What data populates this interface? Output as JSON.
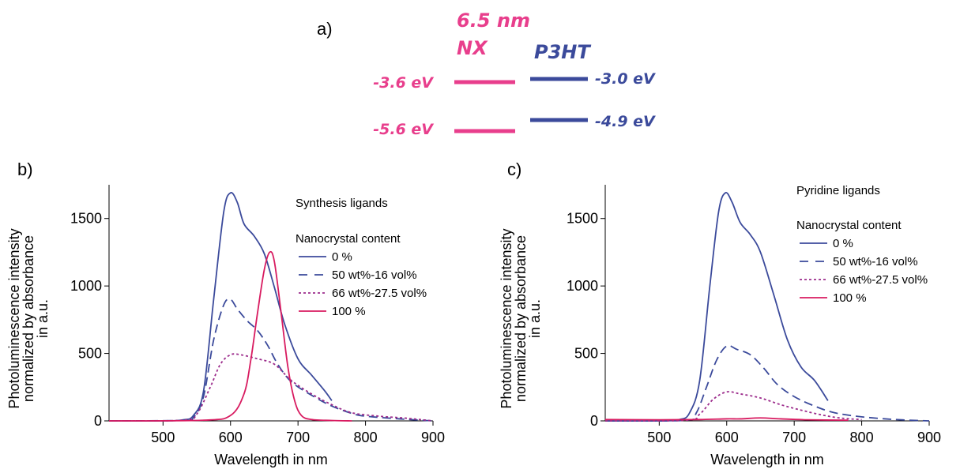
{
  "panel_a": {
    "label": "a)",
    "nx_title": "6.5 nm",
    "nx_name": "NX",
    "p3ht_name": "P3HT",
    "nx_color": "#e83e8c",
    "p3ht_color": "#3b4a9b",
    "levels": {
      "nx_lumo": "-3.6 eV",
      "nx_homo": "-5.6 eV",
      "p3ht_lumo": "-3.0 eV",
      "p3ht_homo": "-4.9 eV"
    }
  },
  "chart_data": [
    {
      "type": "line",
      "panel_label": "b)",
      "title": "Synthesis ligands",
      "legend_title": "Nanocrystal content",
      "xlabel": "Wavelength in nm",
      "ylabel": [
        "Photoluminescence intensity",
        "normalized by absorbance",
        "in a.u."
      ],
      "xlim": [
        420,
        900
      ],
      "ylim": [
        0,
        1750
      ],
      "xticks": [
        500,
        600,
        700,
        800,
        900
      ],
      "yticks": [
        0,
        500,
        1000,
        1500
      ],
      "grid": false,
      "legend_position": "top-right",
      "series": [
        {
          "name": "0 %",
          "color": "#3b4a9b",
          "dash": "solid",
          "x": [
            420,
            500,
            530,
            545,
            560,
            575,
            590,
            600,
            610,
            620,
            635,
            650,
            665,
            680,
            700,
            720,
            740,
            750
          ],
          "y": [
            0,
            0,
            8,
            40,
            220,
            900,
            1550,
            1690,
            1620,
            1460,
            1370,
            1240,
            990,
            720,
            460,
            340,
            220,
            150
          ]
        },
        {
          "name": "50 wt%-16 vol%",
          "color": "#3b4a9b",
          "dash": "dashed",
          "x": [
            420,
            530,
            545,
            560,
            575,
            590,
            600,
            610,
            625,
            640,
            655,
            670,
            690,
            720,
            750,
            780,
            800,
            850,
            900
          ],
          "y": [
            0,
            4,
            25,
            180,
            600,
            860,
            900,
            830,
            740,
            670,
            560,
            420,
            290,
            190,
            110,
            55,
            35,
            15,
            0
          ]
        },
        {
          "name": "66 wt%-27.5 vol%",
          "color": "#9c2c8c",
          "dash": "dotted",
          "x": [
            420,
            530,
            550,
            570,
            585,
            600,
            615,
            640,
            665,
            690,
            720,
            750,
            780,
            820,
            860,
            900
          ],
          "y": [
            0,
            5,
            50,
            250,
            420,
            490,
            490,
            460,
            420,
            300,
            200,
            120,
            60,
            35,
            20,
            0
          ]
        },
        {
          "name": "100 %",
          "color": "#d81b60",
          "dash": "solid",
          "x": [
            420,
            560,
            600,
            620,
            630,
            640,
            650,
            658,
            665,
            675,
            685,
            695,
            705,
            720,
            750,
            780
          ],
          "y": [
            0,
            5,
            40,
            200,
            450,
            800,
            1120,
            1250,
            1180,
            800,
            400,
            150,
            40,
            10,
            3,
            0
          ]
        }
      ]
    },
    {
      "type": "line",
      "panel_label": "c)",
      "title": "Pyridine ligands",
      "legend_title": "Nanocrystal content",
      "xlabel": "Wavelength in nm",
      "ylabel": [
        "Photoluminescence intensity",
        "normalized by absorbance",
        "in a.u."
      ],
      "xlim": [
        420,
        900
      ],
      "ylim": [
        0,
        1750
      ],
      "xticks": [
        500,
        600,
        700,
        800,
        900
      ],
      "yticks": [
        0,
        500,
        1000,
        1500
      ],
      "grid": false,
      "legend_position": "top-right",
      "series": [
        {
          "name": "0 %",
          "color": "#3b4a9b",
          "dash": "solid",
          "x": [
            420,
            500,
            530,
            545,
            560,
            575,
            588,
            598,
            608,
            620,
            635,
            650,
            670,
            690,
            710,
            730,
            750
          ],
          "y": [
            0,
            0,
            10,
            60,
            300,
            1000,
            1550,
            1690,
            1620,
            1470,
            1380,
            1250,
            930,
            600,
            400,
            300,
            150
          ]
        },
        {
          "name": "50 wt%-16 vol%",
          "color": "#3b4a9b",
          "dash": "dashed",
          "x": [
            420,
            540,
            555,
            570,
            585,
            600,
            615,
            635,
            655,
            675,
            700,
            730,
            760,
            800,
            850,
            900
          ],
          "y": [
            0,
            5,
            60,
            250,
            450,
            555,
            530,
            490,
            390,
            270,
            180,
            110,
            60,
            30,
            10,
            0
          ]
        },
        {
          "name": "66 wt%-27.5 vol%",
          "color": "#9c2c8c",
          "dash": "dotted",
          "x": [
            420,
            540,
            560,
            580,
            600,
            620,
            650,
            680,
            710,
            740,
            770,
            800
          ],
          "y": [
            0,
            5,
            50,
            160,
            215,
            200,
            170,
            120,
            80,
            45,
            20,
            10
          ]
        },
        {
          "name": "100 %",
          "color": "#d81b60",
          "dash": "solid",
          "x": [
            420,
            500,
            560,
            600,
            620,
            650,
            680,
            720,
            780
          ],
          "y": [
            10,
            8,
            10,
            15,
            15,
            22,
            15,
            8,
            5
          ]
        }
      ]
    }
  ]
}
